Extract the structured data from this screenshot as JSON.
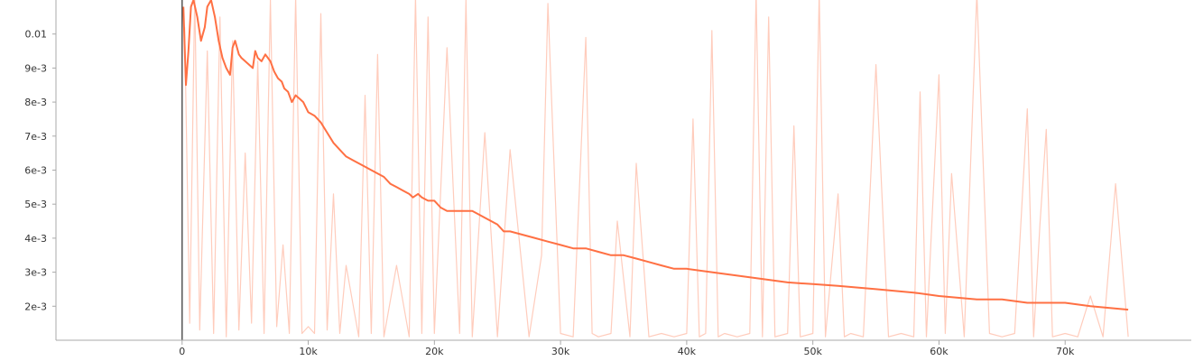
{
  "chart_data": {
    "type": "line",
    "title": "",
    "xlabel": "",
    "ylabel": "",
    "xlim": [
      -10000,
      80000
    ],
    "ylim": [
      0.001,
      0.011
    ],
    "grid": false,
    "legend": "none",
    "x_ticks": [
      {
        "value": 0,
        "label": "0"
      },
      {
        "value": 10000,
        "label": "10k"
      },
      {
        "value": 20000,
        "label": "20k"
      },
      {
        "value": 30000,
        "label": "30k"
      },
      {
        "value": 40000,
        "label": "40k"
      },
      {
        "value": 50000,
        "label": "50k"
      },
      {
        "value": 60000,
        "label": "60k"
      },
      {
        "value": 70000,
        "label": "70k"
      }
    ],
    "y_ticks": [
      {
        "value": 0.002,
        "label": "2e-3"
      },
      {
        "value": 0.003,
        "label": "3e-3"
      },
      {
        "value": 0.004,
        "label": "4e-3"
      },
      {
        "value": 0.005,
        "label": "5e-3"
      },
      {
        "value": 0.006,
        "label": "6e-3"
      },
      {
        "value": 0.007,
        "label": "7e-3"
      },
      {
        "value": 0.008,
        "label": "8e-3"
      },
      {
        "value": 0.009,
        "label": "9e-3"
      },
      {
        "value": 0.01,
        "label": "0.01"
      }
    ],
    "colors": {
      "smoothed": "#ff7043",
      "raw": "#ffccbc",
      "axis": "#aaaaaa",
      "zero_line": "#555555"
    },
    "series": [
      {
        "role": "smoothed",
        "x": [
          100,
          300,
          500,
          700,
          900,
          1200,
          1500,
          1800,
          2000,
          2300,
          2600,
          2900,
          3200,
          3500,
          3800,
          4000,
          4200,
          4500,
          4700,
          5000,
          5300,
          5600,
          5800,
          6000,
          6300,
          6600,
          6800,
          7000,
          7300,
          7600,
          7900,
          8100,
          8400,
          8700,
          9000,
          9300,
          9600,
          10000,
          10500,
          11000,
          11500,
          12000,
          12500,
          13000,
          13500,
          14000,
          14500,
          15000,
          15500,
          16000,
          16500,
          17000,
          17500,
          18000,
          18300,
          18700,
          19000,
          19500,
          20000,
          20500,
          21000,
          21500,
          22000,
          22500,
          23000,
          23500,
          24000,
          24500,
          25000,
          25500,
          26000,
          27000,
          28000,
          29000,
          30000,
          31000,
          31500,
          32000,
          33000,
          34000,
          35000,
          36000,
          37000,
          38000,
          39000,
          40000,
          42000,
          44000,
          46000,
          48000,
          50000,
          52000,
          55000,
          58000,
          60000,
          63000,
          65000,
          67000,
          70000,
          72000,
          75000
        ],
        "y": [
          0.0108,
          0.0085,
          0.0095,
          0.0108,
          0.011,
          0.0105,
          0.0098,
          0.0102,
          0.0108,
          0.011,
          0.0105,
          0.0098,
          0.0093,
          0.009,
          0.0088,
          0.0096,
          0.0098,
          0.0094,
          0.0093,
          0.0092,
          0.0091,
          0.009,
          0.0095,
          0.0093,
          0.0092,
          0.0094,
          0.0093,
          0.0092,
          0.0089,
          0.0087,
          0.0086,
          0.0084,
          0.0083,
          0.008,
          0.0082,
          0.0081,
          0.008,
          0.0077,
          0.0076,
          0.0074,
          0.0071,
          0.0068,
          0.0066,
          0.0064,
          0.0063,
          0.0062,
          0.0061,
          0.006,
          0.0059,
          0.0058,
          0.0056,
          0.0055,
          0.0054,
          0.0053,
          0.0052,
          0.0053,
          0.0052,
          0.0051,
          0.0051,
          0.0049,
          0.0048,
          0.0048,
          0.0048,
          0.0048,
          0.0048,
          0.0047,
          0.0046,
          0.0045,
          0.0044,
          0.0042,
          0.0042,
          0.0041,
          0.004,
          0.0039,
          0.0038,
          0.0037,
          0.0037,
          0.0037,
          0.0036,
          0.0035,
          0.0035,
          0.0034,
          0.0033,
          0.0032,
          0.0031,
          0.0031,
          0.003,
          0.0029,
          0.0028,
          0.0027,
          0.00265,
          0.0026,
          0.0025,
          0.0024,
          0.0023,
          0.0022,
          0.0022,
          0.0021,
          0.0021,
          0.002,
          0.0019
        ]
      },
      {
        "role": "raw",
        "x": [
          200,
          600,
          1000,
          1400,
          2000,
          2500,
          3000,
          3500,
          4000,
          4500,
          5000,
          5500,
          6000,
          6500,
          7000,
          7500,
          8000,
          8500,
          9000,
          9500,
          10000,
          10500,
          11000,
          11500,
          12000,
          12500,
          13000,
          14000,
          14500,
          15000,
          15500,
          16000,
          17000,
          18000,
          18500,
          19000,
          19500,
          20000,
          21000,
          22000,
          22500,
          23000,
          24000,
          25000,
          26000,
          27500,
          28500,
          29000,
          30000,
          31000,
          32000,
          32500,
          33000,
          34000,
          34500,
          35500,
          36000,
          37000,
          38000,
          39000,
          40000,
          40500,
          41000,
          41500,
          42000,
          42500,
          43000,
          44000,
          45000,
          45500,
          46000,
          46500,
          47000,
          48000,
          48500,
          49000,
          50000,
          50500,
          51000,
          52000,
          52500,
          53000,
          54000,
          55000,
          56000,
          57000,
          58000,
          58500,
          59000,
          60000,
          60500,
          61000,
          62000,
          63000,
          64000,
          65000,
          66000,
          67000,
          67500,
          68000,
          68500,
          69000,
          70000,
          71000,
          72000,
          73000,
          74000,
          75000
        ],
        "y": [
          0.0102,
          0.0015,
          0.0112,
          0.0013,
          0.0095,
          0.0012,
          0.0105,
          0.0011,
          0.0098,
          0.0013,
          0.0065,
          0.0015,
          0.0092,
          0.0012,
          0.011,
          0.0014,
          0.0038,
          0.0012,
          0.0111,
          0.0012,
          0.0014,
          0.0012,
          0.0106,
          0.0013,
          0.0053,
          0.0012,
          0.0032,
          0.0011,
          0.0082,
          0.0012,
          0.0094,
          0.0011,
          0.0032,
          0.0011,
          0.0111,
          0.0012,
          0.0105,
          0.0012,
          0.0096,
          0.0012,
          0.011,
          0.0011,
          0.0071,
          0.0011,
          0.0066,
          0.0011,
          0.0035,
          0.0109,
          0.0012,
          0.0011,
          0.0099,
          0.0012,
          0.0011,
          0.0012,
          0.0045,
          0.0011,
          0.0062,
          0.0011,
          0.0012,
          0.0011,
          0.0012,
          0.0075,
          0.0011,
          0.0012,
          0.0101,
          0.0011,
          0.0012,
          0.0011,
          0.0012,
          0.0112,
          0.0011,
          0.0105,
          0.0011,
          0.0012,
          0.0073,
          0.0011,
          0.0012,
          0.0112,
          0.0011,
          0.0053,
          0.0011,
          0.0012,
          0.0011,
          0.0091,
          0.0011,
          0.0012,
          0.0011,
          0.0083,
          0.0011,
          0.0088,
          0.0012,
          0.0059,
          0.0011,
          0.0112,
          0.0012,
          0.0011,
          0.0012,
          0.0078,
          0.0011,
          0.0044,
          0.0072,
          0.0011,
          0.0012,
          0.0011,
          0.0023,
          0.0011,
          0.0056,
          0.0011
        ]
      }
    ]
  }
}
